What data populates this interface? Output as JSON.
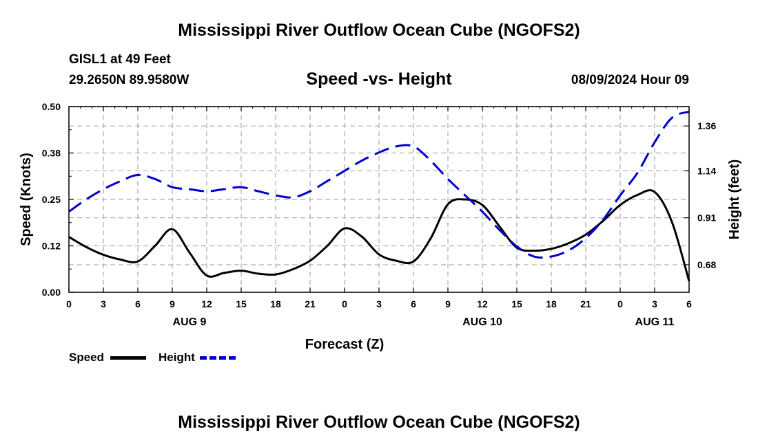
{
  "title_top": "Mississippi River Outflow Ocean Cube (NGOFS2)",
  "title_bottom": "Mississippi River Outflow Ocean Cube (NGOFS2)",
  "station": {
    "name": "GISL1 at 49 Feet",
    "coords": "29.2650N  89.9580W"
  },
  "datetime": "08/09/2024 Hour 09",
  "colors": {
    "speed": "#000000",
    "height": "#0000cc",
    "grid": "#aaaaaa"
  },
  "chart_data": {
    "type": "line",
    "title": "Speed -vs- Height",
    "xlabel": "Forecast (Z)",
    "ylabel_left": "Speed (Knots)",
    "ylabel_right": "Height (feet)",
    "x_range": [
      0,
      54
    ],
    "x_tick_labels": [
      "0",
      "3",
      "6",
      "9",
      "12",
      "15",
      "18",
      "21",
      "0",
      "3",
      "6",
      "9",
      "12",
      "15",
      "18",
      "21",
      "0",
      "3",
      "6"
    ],
    "day_labels": [
      {
        "label": "AUG 9",
        "hour": 10.5
      },
      {
        "label": "AUG 10",
        "hour": 36
      },
      {
        "label": "AUG 11",
        "hour": 51
      }
    ],
    "y_left": {
      "range": [
        0,
        0.5
      ],
      "tick_values": [
        0,
        0.125,
        0.25,
        0.375,
        0.5
      ],
      "tick_labels": [
        "0.00",
        "0.12",
        "0.25",
        "0.38",
        "0.50"
      ]
    },
    "y_right": {
      "range": [
        0.545,
        1.455
      ],
      "tick_values": [
        0.68,
        0.91,
        1.14,
        1.36
      ],
      "tick_labels": [
        "0.68",
        "0.91",
        "1.14",
        "1.36"
      ]
    },
    "grid": true,
    "series": [
      {
        "name": "Speed",
        "axis": "left",
        "style": "solid",
        "x": [
          0,
          1.5,
          3,
          4.5,
          6,
          7.5,
          9,
          10.5,
          12,
          13.5,
          15,
          16.5,
          18,
          19.5,
          21,
          22.5,
          24,
          25.5,
          27,
          28.5,
          30,
          31.5,
          33,
          34.5,
          36,
          37.5,
          39,
          40.5,
          42,
          43.5,
          45,
          46.5,
          48,
          49.5,
          51,
          52.5,
          54
        ],
        "values": [
          0.149,
          0.122,
          0.101,
          0.088,
          0.083,
          0.125,
          0.17,
          0.107,
          0.045,
          0.052,
          0.058,
          0.05,
          0.048,
          0.062,
          0.085,
          0.125,
          0.172,
          0.15,
          0.102,
          0.085,
          0.083,
          0.145,
          0.237,
          0.25,
          0.235,
          0.177,
          0.12,
          0.112,
          0.117,
          0.132,
          0.155,
          0.192,
          0.235,
          0.262,
          0.27,
          0.19,
          0.03
        ]
      },
      {
        "name": "Height",
        "axis": "right",
        "style": "dashed",
        "x": [
          0,
          1.5,
          3,
          4.5,
          6,
          7.5,
          9,
          10.5,
          12,
          13.5,
          15,
          16.5,
          18,
          19.5,
          21,
          22.5,
          24,
          25.5,
          27,
          28.5,
          30,
          31.5,
          33,
          34.5,
          36,
          37.5,
          39,
          40.5,
          42,
          43.5,
          45,
          46.5,
          48,
          49.5,
          51,
          52.5,
          54
        ],
        "values": [
          0.94,
          1.0,
          1.05,
          1.09,
          1.12,
          1.1,
          1.06,
          1.05,
          1.04,
          1.05,
          1.06,
          1.04,
          1.02,
          1.01,
          1.04,
          1.09,
          1.14,
          1.19,
          1.23,
          1.26,
          1.26,
          1.19,
          1.1,
          1.02,
          0.94,
          0.85,
          0.77,
          0.72,
          0.72,
          0.75,
          0.81,
          0.9,
          1.02,
          1.13,
          1.28,
          1.4,
          1.43
        ]
      }
    ]
  }
}
